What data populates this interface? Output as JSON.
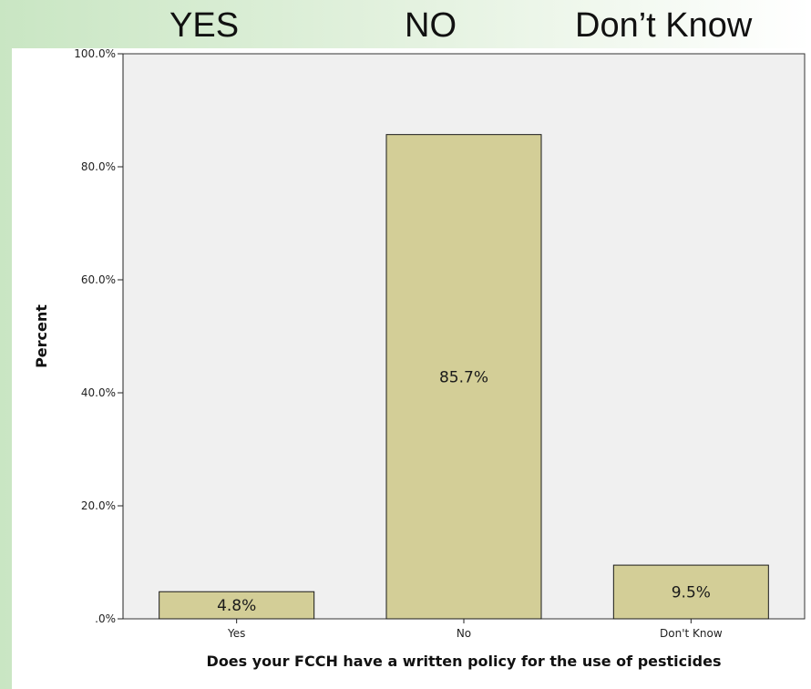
{
  "slide": {
    "header_labels": [
      "YES",
      "NO",
      "Don’t Know"
    ]
  },
  "colors": {
    "bar_fill": "#d3ce97",
    "bar_stroke": "#1a1a1a",
    "plot_background": "#f0f0f0",
    "slide_gradient_start": "#c9e6c3"
  },
  "chart_data": {
    "type": "bar",
    "categories": [
      "Yes",
      "No",
      "Don't Know"
    ],
    "values": [
      4.8,
      85.7,
      9.5
    ],
    "data_labels": [
      "4.8%",
      "85.7%",
      "9.5%"
    ],
    "title": "",
    "xlabel": "Does your FCCH have a written policy for the use of pesticides",
    "ylabel": "Percent",
    "ylim": [
      0,
      100
    ],
    "yticks": [
      0,
      20,
      40,
      60,
      80,
      100
    ],
    "ytick_labels": [
      ".0%",
      "20.0%",
      "40.0%",
      "60.0%",
      "80.0%",
      "100.0%"
    ],
    "grid": false,
    "legend": "none"
  }
}
